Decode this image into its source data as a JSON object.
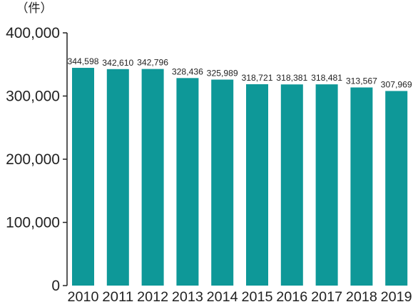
{
  "chart_data": {
    "type": "bar",
    "unit_label": "（件）",
    "categories": [
      "2010",
      "2011",
      "2012",
      "2013",
      "2014",
      "2015",
      "2016",
      "2017",
      "2018",
      "2019"
    ],
    "values": [
      344598,
      342610,
      342796,
      328436,
      325989,
      318721,
      318381,
      318481,
      313567,
      307969
    ],
    "value_labels": [
      "344,598",
      "342,610",
      "342,796",
      "328,436",
      "325,989",
      "318,721",
      "318,381",
      "318,481",
      "313,567",
      "307,969"
    ],
    "yticks": [
      0,
      100000,
      200000,
      300000,
      400000
    ],
    "ytick_labels": [
      "0",
      "100,000",
      "200,000",
      "300,000",
      "400,000"
    ],
    "ylim": [
      0,
      400000
    ],
    "bar_color": "#0e9898",
    "axis_color": "#222222",
    "grid": false,
    "legend": "none",
    "title": "",
    "xlabel": "",
    "ylabel": ""
  }
}
